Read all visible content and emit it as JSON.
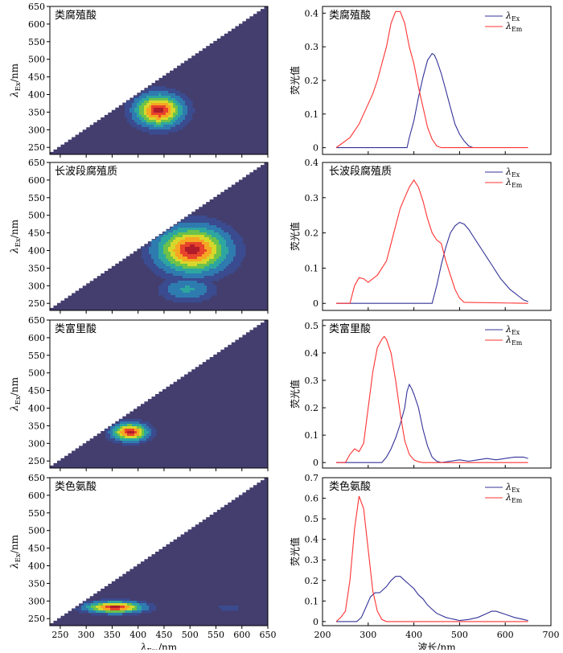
{
  "colors": {
    "ex_line": "#333399",
    "em_line": "#ff3333",
    "eem_background": "#433e6e",
    "eem_levels": [
      "#3b4b8f",
      "#2e7bb0",
      "#2ea6a0",
      "#6cc24a",
      "#d6d82c",
      "#f5a623",
      "#e8432b",
      "#b01c2a"
    ]
  },
  "labels": {
    "em_axis": "λEm/nm",
    "ex_axis": "λEx/nm",
    "intensity": "荧光值",
    "wavelength": "波长/nm",
    "legend_ex": "λEx",
    "legend_em": "λEm"
  },
  "chart_data": [
    {
      "type": "heatmap",
      "title": "类腐殖酸",
      "xlim": [
        230,
        650
      ],
      "ylim": [
        230,
        650
      ],
      "xticks": [
        250,
        300,
        350,
        400,
        450,
        500,
        550,
        600,
        650
      ],
      "xtick_labels": [
        "",
        "",
        "",
        "",
        "",
        "",
        "",
        "",
        ""
      ],
      "yticks": [
        250,
        300,
        350,
        400,
        450,
        500,
        550,
        600,
        650
      ],
      "xlabel": "",
      "ylabel": "λEx/nm",
      "colormap": "parula-like",
      "peaks": [
        {
          "em": 440,
          "ex": 355,
          "sx": 40,
          "sy": 40,
          "amp": 1.0
        }
      ]
    },
    {
      "type": "line",
      "title": "类腐殖酸",
      "xlim": [
        200,
        700
      ],
      "ylim": [
        -0.02,
        0.42
      ],
      "xticks": [
        200,
        300,
        400,
        500,
        600,
        700
      ],
      "xtick_labels": [
        "",
        "",
        "",
        "",
        "",
        ""
      ],
      "yticks": [
        0,
        0.1,
        0.2,
        0.3,
        0.4
      ],
      "ytick_labels": [
        "0",
        "0.1",
        "0.2",
        "0.3",
        "0.4"
      ],
      "ylabel": "荧光值",
      "xlabel": "",
      "legend": "top-right",
      "series": [
        {
          "name": "λEx",
          "x": [
            230,
            385,
            390,
            400,
            410,
            420,
            430,
            440,
            445,
            450,
            460,
            470,
            480,
            490,
            500,
            510,
            520,
            530
          ],
          "y": [
            0,
            0,
            0.03,
            0.08,
            0.15,
            0.21,
            0.26,
            0.28,
            0.275,
            0.26,
            0.22,
            0.17,
            0.12,
            0.07,
            0.04,
            0.02,
            0.005,
            0
          ]
        },
        {
          "name": "λEm",
          "x": [
            230,
            240,
            250,
            260,
            270,
            280,
            290,
            300,
            310,
            320,
            330,
            340,
            350,
            360,
            370,
            380,
            390,
            400,
            410,
            420,
            430,
            440,
            450,
            460,
            650
          ],
          "y": [
            0,
            0.01,
            0.02,
            0.03,
            0.05,
            0.07,
            0.1,
            0.13,
            0.16,
            0.2,
            0.25,
            0.3,
            0.37,
            0.405,
            0.405,
            0.37,
            0.3,
            0.25,
            0.18,
            0.12,
            0.06,
            0.025,
            0.005,
            0,
            0
          ]
        }
      ]
    },
    {
      "type": "heatmap",
      "title": "长波段腐殖质",
      "xlim": [
        230,
        650
      ],
      "ylim": [
        230,
        650
      ],
      "xticks": [
        250,
        300,
        350,
        400,
        450,
        500,
        550,
        600,
        650
      ],
      "xtick_labels": [
        "",
        "",
        "",
        "",
        "",
        "",
        "",
        "",
        ""
      ],
      "yticks": [
        250,
        300,
        350,
        400,
        450,
        500,
        550,
        600,
        650
      ],
      "xlabel": "",
      "ylabel": "λEx/nm",
      "colormap": "parula-like",
      "peaks": [
        {
          "em": 505,
          "ex": 402,
          "sx": 60,
          "sy": 58,
          "amp": 1.0
        },
        {
          "em": 495,
          "ex": 290,
          "sx": 45,
          "sy": 30,
          "amp": 0.3
        }
      ]
    },
    {
      "type": "line",
      "title": "长波段腐殖质",
      "xlim": [
        200,
        700
      ],
      "ylim": [
        -0.02,
        0.4
      ],
      "xticks": [
        200,
        300,
        400,
        500,
        600,
        700
      ],
      "xtick_labels": [
        "",
        "",
        "",
        "",
        "",
        ""
      ],
      "yticks": [
        0,
        0.1,
        0.2,
        0.3,
        0.4
      ],
      "ytick_labels": [
        "0",
        "0.1",
        "0.2",
        "0.3",
        "0.4"
      ],
      "ylabel": "荧光值",
      "xlabel": "",
      "legend": "top-right",
      "series": [
        {
          "name": "λEx",
          "x": [
            230,
            440,
            450,
            460,
            470,
            480,
            490,
            500,
            510,
            520,
            530,
            540,
            550,
            560,
            570,
            580,
            590,
            600,
            610,
            620,
            630,
            640,
            650
          ],
          "y": [
            0,
            0,
            0.05,
            0.11,
            0.16,
            0.2,
            0.22,
            0.23,
            0.225,
            0.21,
            0.19,
            0.17,
            0.15,
            0.13,
            0.11,
            0.09,
            0.07,
            0.055,
            0.04,
            0.03,
            0.02,
            0.01,
            0.005
          ]
        },
        {
          "name": "λEm",
          "x": [
            230,
            260,
            270,
            280,
            290,
            300,
            310,
            320,
            330,
            340,
            350,
            360,
            370,
            380,
            390,
            400,
            410,
            420,
            430,
            440,
            450,
            460,
            470,
            480,
            490,
            500,
            510,
            650
          ],
          "y": [
            0,
            0,
            0.05,
            0.073,
            0.07,
            0.06,
            0.07,
            0.08,
            0.1,
            0.12,
            0.17,
            0.22,
            0.27,
            0.3,
            0.33,
            0.35,
            0.33,
            0.29,
            0.24,
            0.2,
            0.18,
            0.17,
            0.12,
            0.08,
            0.04,
            0.015,
            0.003,
            0
          ]
        }
      ]
    },
    {
      "type": "heatmap",
      "title": "类富里酸",
      "xlim": [
        230,
        650
      ],
      "ylim": [
        230,
        650
      ],
      "xticks": [
        250,
        300,
        350,
        400,
        450,
        500,
        550,
        600,
        650
      ],
      "xtick_labels": [
        "",
        "",
        "",
        "",
        "",
        "",
        "",
        "",
        ""
      ],
      "yticks": [
        250,
        300,
        350,
        400,
        450,
        500,
        550,
        600,
        650
      ],
      "xlabel": "",
      "ylabel": "λEx/nm",
      "colormap": "parula-like",
      "peaks": [
        {
          "em": 385,
          "ex": 332,
          "sx": 30,
          "sy": 22,
          "amp": 1.0
        }
      ]
    },
    {
      "type": "line",
      "title": "类富里酸",
      "xlim": [
        200,
        700
      ],
      "ylim": [
        -0.02,
        0.52
      ],
      "xticks": [
        200,
        300,
        400,
        500,
        600,
        700
      ],
      "xtick_labels": [
        "",
        "",
        "",
        "",
        "",
        ""
      ],
      "yticks": [
        0,
        0.1,
        0.2,
        0.3,
        0.4,
        0.5
      ],
      "ytick_labels": [
        "0",
        "0.1",
        "0.2",
        "0.3",
        "0.4",
        "0.5"
      ],
      "ylabel": "荧光值",
      "xlabel": "",
      "legend": "top-right",
      "series": [
        {
          "name": "λEx",
          "x": [
            230,
            330,
            340,
            350,
            360,
            370,
            380,
            385,
            390,
            395,
            400,
            410,
            420,
            430,
            440,
            450,
            460,
            480,
            500,
            520,
            540,
            560,
            580,
            600,
            620,
            640,
            650
          ],
          "y": [
            0,
            0,
            0.02,
            0.05,
            0.09,
            0.14,
            0.2,
            0.26,
            0.285,
            0.27,
            0.25,
            0.2,
            0.12,
            0.06,
            0.02,
            0.005,
            0,
            0.005,
            0.01,
            0.005,
            0.01,
            0.015,
            0.01,
            0.015,
            0.02,
            0.02,
            0.015
          ]
        },
        {
          "name": "λEm",
          "x": [
            230,
            250,
            260,
            270,
            280,
            290,
            300,
            310,
            320,
            330,
            335,
            340,
            350,
            360,
            370,
            380,
            390,
            400,
            410,
            420,
            650
          ],
          "y": [
            0,
            0,
            0.03,
            0.05,
            0.04,
            0.07,
            0.2,
            0.33,
            0.42,
            0.45,
            0.46,
            0.45,
            0.4,
            0.3,
            0.18,
            0.08,
            0.03,
            0.01,
            0.003,
            0,
            0
          ]
        }
      ]
    },
    {
      "type": "heatmap",
      "title": "类色氨酸",
      "xlim": [
        230,
        650
      ],
      "ylim": [
        230,
        650
      ],
      "xticks": [
        250,
        300,
        350,
        400,
        450,
        500,
        550,
        600,
        650
      ],
      "xtick_labels": [
        "250",
        "300",
        "350",
        "400",
        "450",
        "500",
        "550",
        "600",
        "650"
      ],
      "yticks": [
        250,
        300,
        350,
        400,
        450,
        500,
        550,
        600,
        650
      ],
      "xlabel": "λEm/nm",
      "ylabel": "λEx/nm",
      "colormap": "parula-like",
      "peaks": [
        {
          "em": 355,
          "ex": 282,
          "sx": 48,
          "sy": 14,
          "amp": 1.0
        },
        {
          "em": 575,
          "ex": 282,
          "sx": 22,
          "sy": 9,
          "amp": 0.14
        }
      ]
    },
    {
      "type": "line",
      "title": "类色氨酸",
      "xlim": [
        200,
        700
      ],
      "ylim": [
        -0.02,
        0.7
      ],
      "xticks": [
        200,
        300,
        400,
        500,
        600,
        700
      ],
      "xtick_labels": [
        "200",
        "300",
        "400",
        "500",
        "600",
        "700"
      ],
      "yticks": [
        0,
        0.1,
        0.2,
        0.3,
        0.4,
        0.5,
        0.6,
        0.7
      ],
      "ytick_labels": [
        "0",
        "0.1",
        "0.2",
        "0.3",
        "0.4",
        "0.5",
        "0.6",
        "0.7"
      ],
      "ylabel": "荧光值",
      "xlabel": "波长/nm",
      "legend": "top-right",
      "series": [
        {
          "name": "λEx",
          "x": [
            230,
            275,
            285,
            295,
            305,
            315,
            325,
            340,
            350,
            360,
            370,
            380,
            390,
            400,
            410,
            420,
            430,
            440,
            450,
            460,
            470,
            480,
            490,
            500,
            520,
            540,
            560,
            570,
            580,
            600,
            620,
            640,
            650
          ],
          "y": [
            0,
            0,
            0.02,
            0.07,
            0.12,
            0.14,
            0.14,
            0.17,
            0.2,
            0.22,
            0.22,
            0.2,
            0.18,
            0.16,
            0.13,
            0.11,
            0.08,
            0.06,
            0.04,
            0.03,
            0.02,
            0.015,
            0.01,
            0.005,
            0.01,
            0.02,
            0.04,
            0.05,
            0.05,
            0.035,
            0.02,
            0.01,
            0.005
          ]
        },
        {
          "name": "λEm",
          "x": [
            230,
            240,
            250,
            260,
            270,
            280,
            290,
            300,
            310,
            320,
            330,
            340,
            650
          ],
          "y": [
            0,
            0.02,
            0.05,
            0.2,
            0.45,
            0.61,
            0.55,
            0.35,
            0.15,
            0.05,
            0.01,
            0,
            0
          ]
        }
      ]
    }
  ]
}
